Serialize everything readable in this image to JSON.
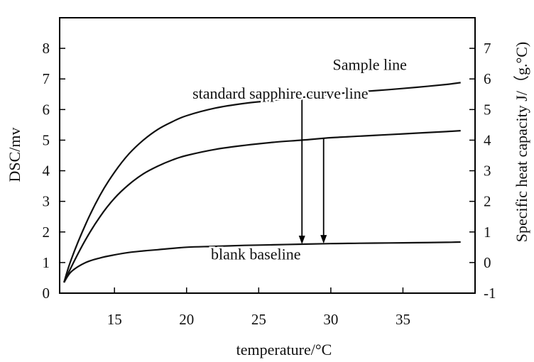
{
  "chart_data": {
    "type": "line",
    "title": "",
    "xlabel": "temperature/°C",
    "ylabel": "DSC/mv",
    "y2label": "Specific heat capacity J/（g.°C)",
    "xlim": [
      11.2,
      40
    ],
    "ylim": [
      0,
      9
    ],
    "y2lim": [
      -1,
      8
    ],
    "x_ticks": [
      15,
      20,
      25,
      30,
      35
    ],
    "y_ticks": [
      0,
      1,
      2,
      3,
      4,
      5,
      6,
      7,
      8
    ],
    "y2_ticks": [
      -1,
      0,
      1,
      2,
      3,
      4,
      5,
      6,
      7
    ],
    "grid": false,
    "series": [
      {
        "name": "Sample line",
        "x": [
          11.5,
          12,
          13,
          14,
          15,
          16,
          17,
          18,
          19,
          20,
          22,
          24,
          26,
          28,
          30,
          32,
          34,
          36,
          38,
          39
        ],
        "y": [
          0.35,
          1.1,
          2.25,
          3.2,
          3.95,
          4.55,
          5.0,
          5.35,
          5.6,
          5.8,
          6.05,
          6.2,
          6.3,
          6.4,
          6.5,
          6.58,
          6.65,
          6.73,
          6.82,
          6.88
        ]
      },
      {
        "name": "standard sapphire curve line",
        "x": [
          11.5,
          12,
          13,
          14,
          15,
          16,
          17,
          18,
          19,
          20,
          22,
          24,
          26,
          28,
          30,
          32,
          34,
          36,
          38,
          39
        ],
        "y": [
          0.35,
          0.85,
          1.75,
          2.5,
          3.1,
          3.55,
          3.9,
          4.15,
          4.35,
          4.5,
          4.7,
          4.83,
          4.93,
          5.0,
          5.08,
          5.13,
          5.18,
          5.23,
          5.28,
          5.31
        ]
      },
      {
        "name": "blank baseline",
        "x": [
          11.5,
          12,
          13,
          14,
          15,
          16,
          17,
          18,
          20,
          22,
          24,
          26,
          28,
          30,
          32,
          34,
          36,
          38,
          39
        ],
        "y": [
          0.35,
          0.7,
          1.0,
          1.15,
          1.25,
          1.33,
          1.38,
          1.42,
          1.5,
          1.53,
          1.56,
          1.58,
          1.6,
          1.62,
          1.63,
          1.64,
          1.65,
          1.66,
          1.67
        ]
      }
    ],
    "annotations": [
      {
        "text": "Sample line",
        "x": 32.7,
        "y": 7.3
      },
      {
        "text": "standard sapphire curve line",
        "x": 26.5,
        "y": 6.35
      },
      {
        "text": "blank baseline",
        "x": 24.8,
        "y": 1.1
      }
    ],
    "arrows": [
      {
        "x": 28.0,
        "y_from": 6.55,
        "y_to": 1.6
      },
      {
        "x": 29.5,
        "y_from": 5.05,
        "y_to": 1.62
      }
    ]
  }
}
